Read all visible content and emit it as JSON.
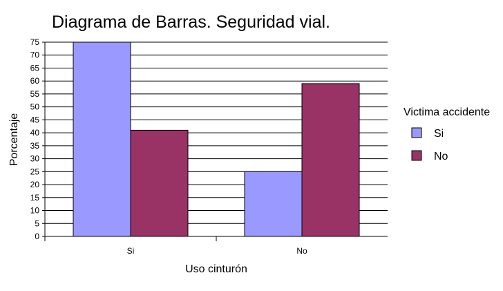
{
  "chart_data": {
    "type": "bar",
    "title": "Diagrama de Barras. Seguridad vial.",
    "xlabel": "Uso cinturón",
    "ylabel": "Porcentaje",
    "categories": [
      "Si",
      "No"
    ],
    "series": [
      {
        "name": "Si",
        "color": "#9999FF",
        "values": [
          75,
          25
        ]
      },
      {
        "name": "No",
        "color": "#993366",
        "values": [
          41,
          59
        ]
      }
    ],
    "ylim": [
      0,
      75
    ],
    "yticks": [
      0,
      5,
      10,
      15,
      20,
      25,
      30,
      35,
      40,
      45,
      50,
      55,
      60,
      65,
      70,
      75
    ],
    "grid": true,
    "legend": {
      "title": "Victima accidente",
      "position": "right"
    }
  }
}
